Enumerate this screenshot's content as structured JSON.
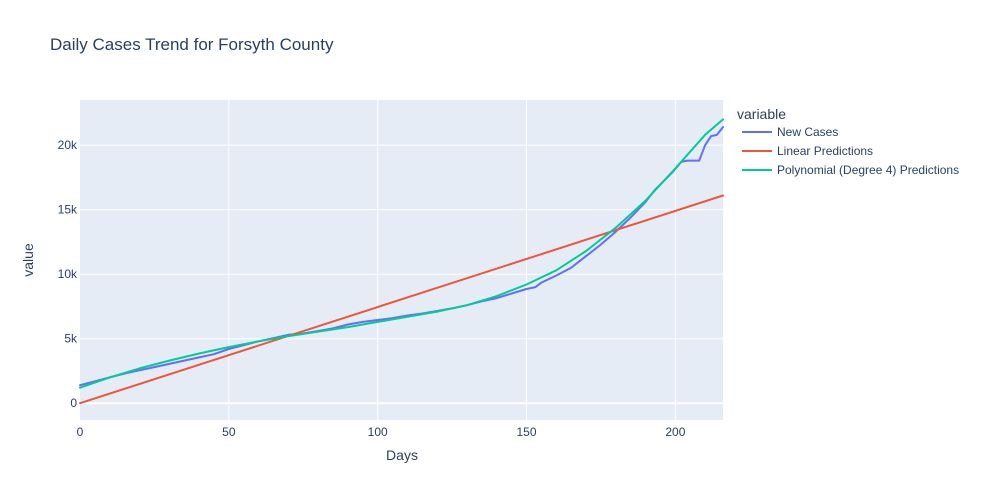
{
  "chart_data": {
    "type": "line",
    "title": "Daily Cases Trend for Forsyth County",
    "xlabel": "Days",
    "ylabel": "value",
    "xlim": [
      0,
      216
    ],
    "ylim": [
      -1300,
      23500
    ],
    "x_ticks": [
      0,
      50,
      100,
      150,
      200
    ],
    "x_tick_labels": [
      "0",
      "50",
      "100",
      "150",
      "200"
    ],
    "y_ticks": [
      0,
      5000,
      10000,
      15000,
      20000
    ],
    "y_tick_labels": [
      "0",
      "5k",
      "10k",
      "15k",
      "20k"
    ],
    "grid": true,
    "legend": {
      "title": "variable",
      "placement": "right"
    },
    "series": [
      {
        "name": "New Cases",
        "color": "#636efa",
        "x": [
          0,
          5,
          10,
          15,
          20,
          25,
          30,
          35,
          40,
          45,
          50,
          55,
          60,
          65,
          70,
          75,
          80,
          85,
          90,
          95,
          100,
          105,
          110,
          115,
          120,
          125,
          130,
          135,
          140,
          145,
          150,
          153,
          155,
          160,
          165,
          170,
          175,
          180,
          185,
          190,
          193,
          196,
          199,
          202,
          204,
          206,
          208,
          210,
          212,
          214,
          216
        ],
        "y": [
          1400,
          1700,
          2000,
          2300,
          2550,
          2800,
          3050,
          3300,
          3550,
          3800,
          4200,
          4500,
          4800,
          5050,
          5300,
          5400,
          5600,
          5800,
          6100,
          6300,
          6450,
          6600,
          6800,
          6950,
          7150,
          7350,
          7600,
          7900,
          8150,
          8500,
          8850,
          9000,
          9350,
          9900,
          10500,
          11400,
          12300,
          13300,
          14400,
          15600,
          16500,
          17200,
          17900,
          18700,
          18800,
          18800,
          18800,
          20000,
          20700,
          20800,
          21400
        ]
      },
      {
        "name": "Linear Predictions",
        "color": "#ef553b",
        "x": [
          0,
          216
        ],
        "y": [
          0,
          16100
        ]
      },
      {
        "name": "Polynomial (Degree 4) Predictions",
        "color": "#00cc96",
        "x": [
          0,
          10,
          20,
          30,
          40,
          50,
          60,
          70,
          80,
          90,
          100,
          110,
          120,
          130,
          140,
          150,
          160,
          170,
          180,
          190,
          200,
          210,
          216
        ],
        "y": [
          1200,
          2000,
          2700,
          3300,
          3850,
          4350,
          4800,
          5200,
          5550,
          5900,
          6300,
          6700,
          7100,
          7600,
          8300,
          9200,
          10300,
          11800,
          13600,
          15700,
          18200,
          20800,
          22000
        ]
      }
    ]
  }
}
